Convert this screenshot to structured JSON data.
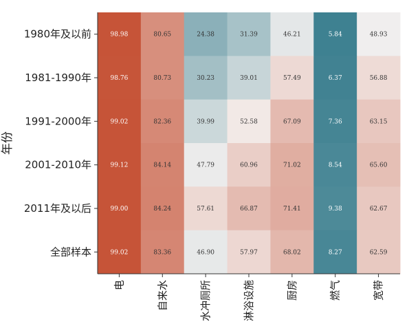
{
  "chart_data": {
    "type": "heatmap",
    "title": "",
    "xlabel": "",
    "ylabel": "年份",
    "rows": [
      "1980年及以前",
      "1981-1990年",
      "1991-2000年",
      "2001-2010年",
      "2011年及以后",
      "全部样本"
    ],
    "columns": [
      "电",
      "自来水",
      "水冲厕所",
      "淋浴设施",
      "厨房",
      "燃气",
      "宽带"
    ],
    "values": [
      [
        98.98,
        80.65,
        24.38,
        31.39,
        46.21,
        5.84,
        48.93
      ],
      [
        98.76,
        80.73,
        30.23,
        39.01,
        57.49,
        6.37,
        56.88
      ],
      [
        99.02,
        82.36,
        39.99,
        52.58,
        67.09,
        7.36,
        63.15
      ],
      [
        99.12,
        84.14,
        47.79,
        60.96,
        71.02,
        8.54,
        65.6
      ],
      [
        99.0,
        84.24,
        57.61,
        66.87,
        71.41,
        9.38,
        62.67
      ],
      [
        99.02,
        83.36,
        46.9,
        57.97,
        68.02,
        8.27,
        62.59
      ]
    ],
    "colormap": {
      "low": "#3b7f8f",
      "mid": "#f4f1f0",
      "high": "#c65438",
      "center": 50,
      "vmin": 5,
      "vmax": 99
    },
    "value_format": "2 decimals",
    "grid": false,
    "legend": "none"
  }
}
